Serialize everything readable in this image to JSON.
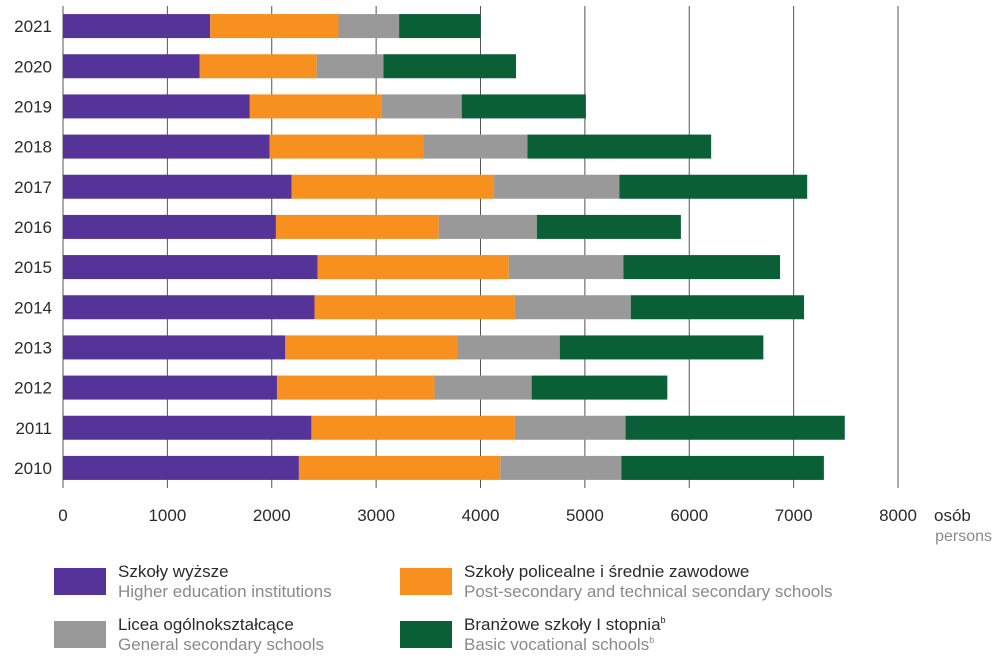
{
  "chart_data": {
    "type": "bar",
    "orientation": "horizontal",
    "stacked": true,
    "categories": [
      "2021",
      "2020",
      "2019",
      "2018",
      "2017",
      "2016",
      "2015",
      "2014",
      "2013",
      "2012",
      "2011",
      "2010"
    ],
    "series": [
      {
        "name": "Szkoły wyższe",
        "name_en": "Higher education institutions",
        "color": "#553399",
        "values": [
          1410,
          1310,
          1790,
          1980,
          2190,
          2040,
          2440,
          2410,
          2130,
          2050,
          2380,
          2260
        ]
      },
      {
        "name": "Szkoły policealne i średnie zawodowe",
        "name_en": "Post-secondary and technical secondary schools",
        "color": "#f7901e",
        "values": [
          1230,
          1120,
          1260,
          1470,
          1940,
          1560,
          1830,
          1920,
          1650,
          1510,
          1950,
          1930
        ]
      },
      {
        "name": "Licea ogólnokształcące",
        "name_en": "General secondary schools",
        "color": "#999999",
        "values": [
          580,
          640,
          770,
          1000,
          1200,
          940,
          1100,
          1110,
          980,
          930,
          1060,
          1160
        ]
      },
      {
        "name": "Branżowe szkoły I stopnia",
        "name_en": "Basic vocational schools",
        "name_sup": "b",
        "color": "#0a5f37",
        "values": [
          780,
          1270,
          1190,
          1760,
          1800,
          1380,
          1500,
          1660,
          1950,
          1300,
          2100,
          1940
        ]
      }
    ],
    "xlim": [
      0,
      8000
    ],
    "xticks": [
      "0",
      "1000",
      "2000",
      "3000",
      "4000",
      "5000",
      "6000",
      "7000",
      "8000"
    ],
    "xunit": "osób",
    "xunit_en": "persons",
    "grid": "vertical",
    "legend_position": "bottom"
  }
}
